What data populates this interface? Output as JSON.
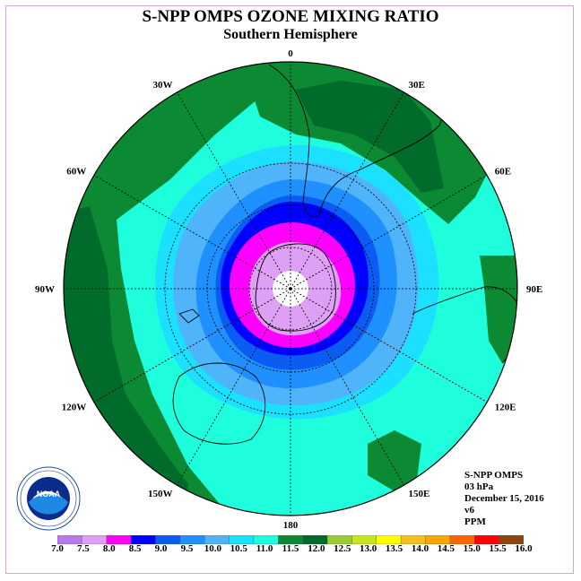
{
  "title": "S-NPP OMPS OZONE MIXING RATIO",
  "subtitle": "Southern Hemisphere",
  "info": {
    "instrument": "S-NPP OMPS",
    "level": "03 hPa",
    "date": "December 15, 2016",
    "version": "v6",
    "units": "PPM"
  },
  "map": {
    "projection": "south-polar-stereographic",
    "longitude_labels": [
      {
        "text": "0",
        "lon": 0
      },
      {
        "text": "30E",
        "lon": 30
      },
      {
        "text": "60E",
        "lon": 60
      },
      {
        "text": "90E",
        "lon": 90
      },
      {
        "text": "120E",
        "lon": 120
      },
      {
        "text": "150E",
        "lon": 150
      },
      {
        "text": "180",
        "lon": 180
      },
      {
        "text": "150W",
        "lon": -150
      },
      {
        "text": "120W",
        "lon": -120
      },
      {
        "text": "90W",
        "lon": -90
      },
      {
        "text": "60W",
        "lon": -60
      },
      {
        "text": "30W",
        "lon": -30
      }
    ]
  },
  "colorbar": {
    "ticks": [
      "7.0",
      "7.5",
      "8.0",
      "8.5",
      "9.0",
      "9.5",
      "10.0",
      "10.5",
      "11.0",
      "11.5",
      "12.0",
      "12.5",
      "13.0",
      "13.5",
      "14.0",
      "14.5",
      "15.0",
      "15.5",
      "16.0"
    ],
    "colors": [
      "#b87aed",
      "#dda0f5",
      "#ff00ff",
      "#0000ff",
      "#0b5cf2",
      "#1e90ff",
      "#4fb4fa",
      "#1ce0ff",
      "#1efedc",
      "#0c8a33",
      "#006b2a",
      "#9acd32",
      "#c8e61e",
      "#ffff00",
      "#f4c11c",
      "#ffa500",
      "#ff6600",
      "#ff0000",
      "#8b4513"
    ]
  }
}
